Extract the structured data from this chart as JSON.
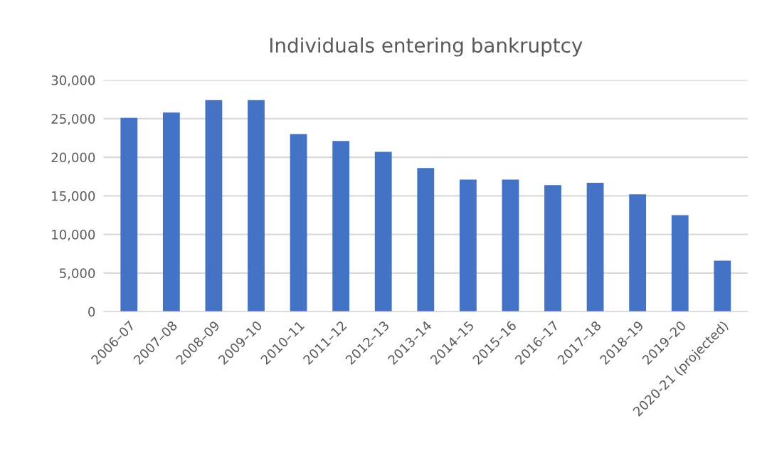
{
  "chart_data": {
    "type": "bar",
    "title": "Individuals entering bankruptcy",
    "categories": [
      "2006–07",
      "2007–08",
      "2008–09",
      "2009–10",
      "2010–11",
      "2011–12",
      "2012–13",
      "2013–14",
      "2014–15",
      "2015–16",
      "2016–17",
      "2017–18",
      "2018–19",
      "2019–20",
      "2020-21 (projected)"
    ],
    "values": [
      25100,
      25800,
      27400,
      27400,
      23000,
      22100,
      20700,
      18600,
      17100,
      17100,
      16400,
      16700,
      15200,
      12500,
      6600
    ],
    "color": "#4472c4",
    "ylim": [
      0,
      30000
    ],
    "yticks": [
      {
        "value": 0,
        "label": "0"
      },
      {
        "value": 5000,
        "label": "5,000"
      },
      {
        "value": 10000,
        "label": "10,000"
      },
      {
        "value": 15000,
        "label": "15,000"
      },
      {
        "value": 20000,
        "label": "20,000"
      },
      {
        "value": 25000,
        "label": "25,000"
      },
      {
        "value": 30000,
        "label": "30,000"
      }
    ],
    "grid": "y",
    "legend": false
  }
}
